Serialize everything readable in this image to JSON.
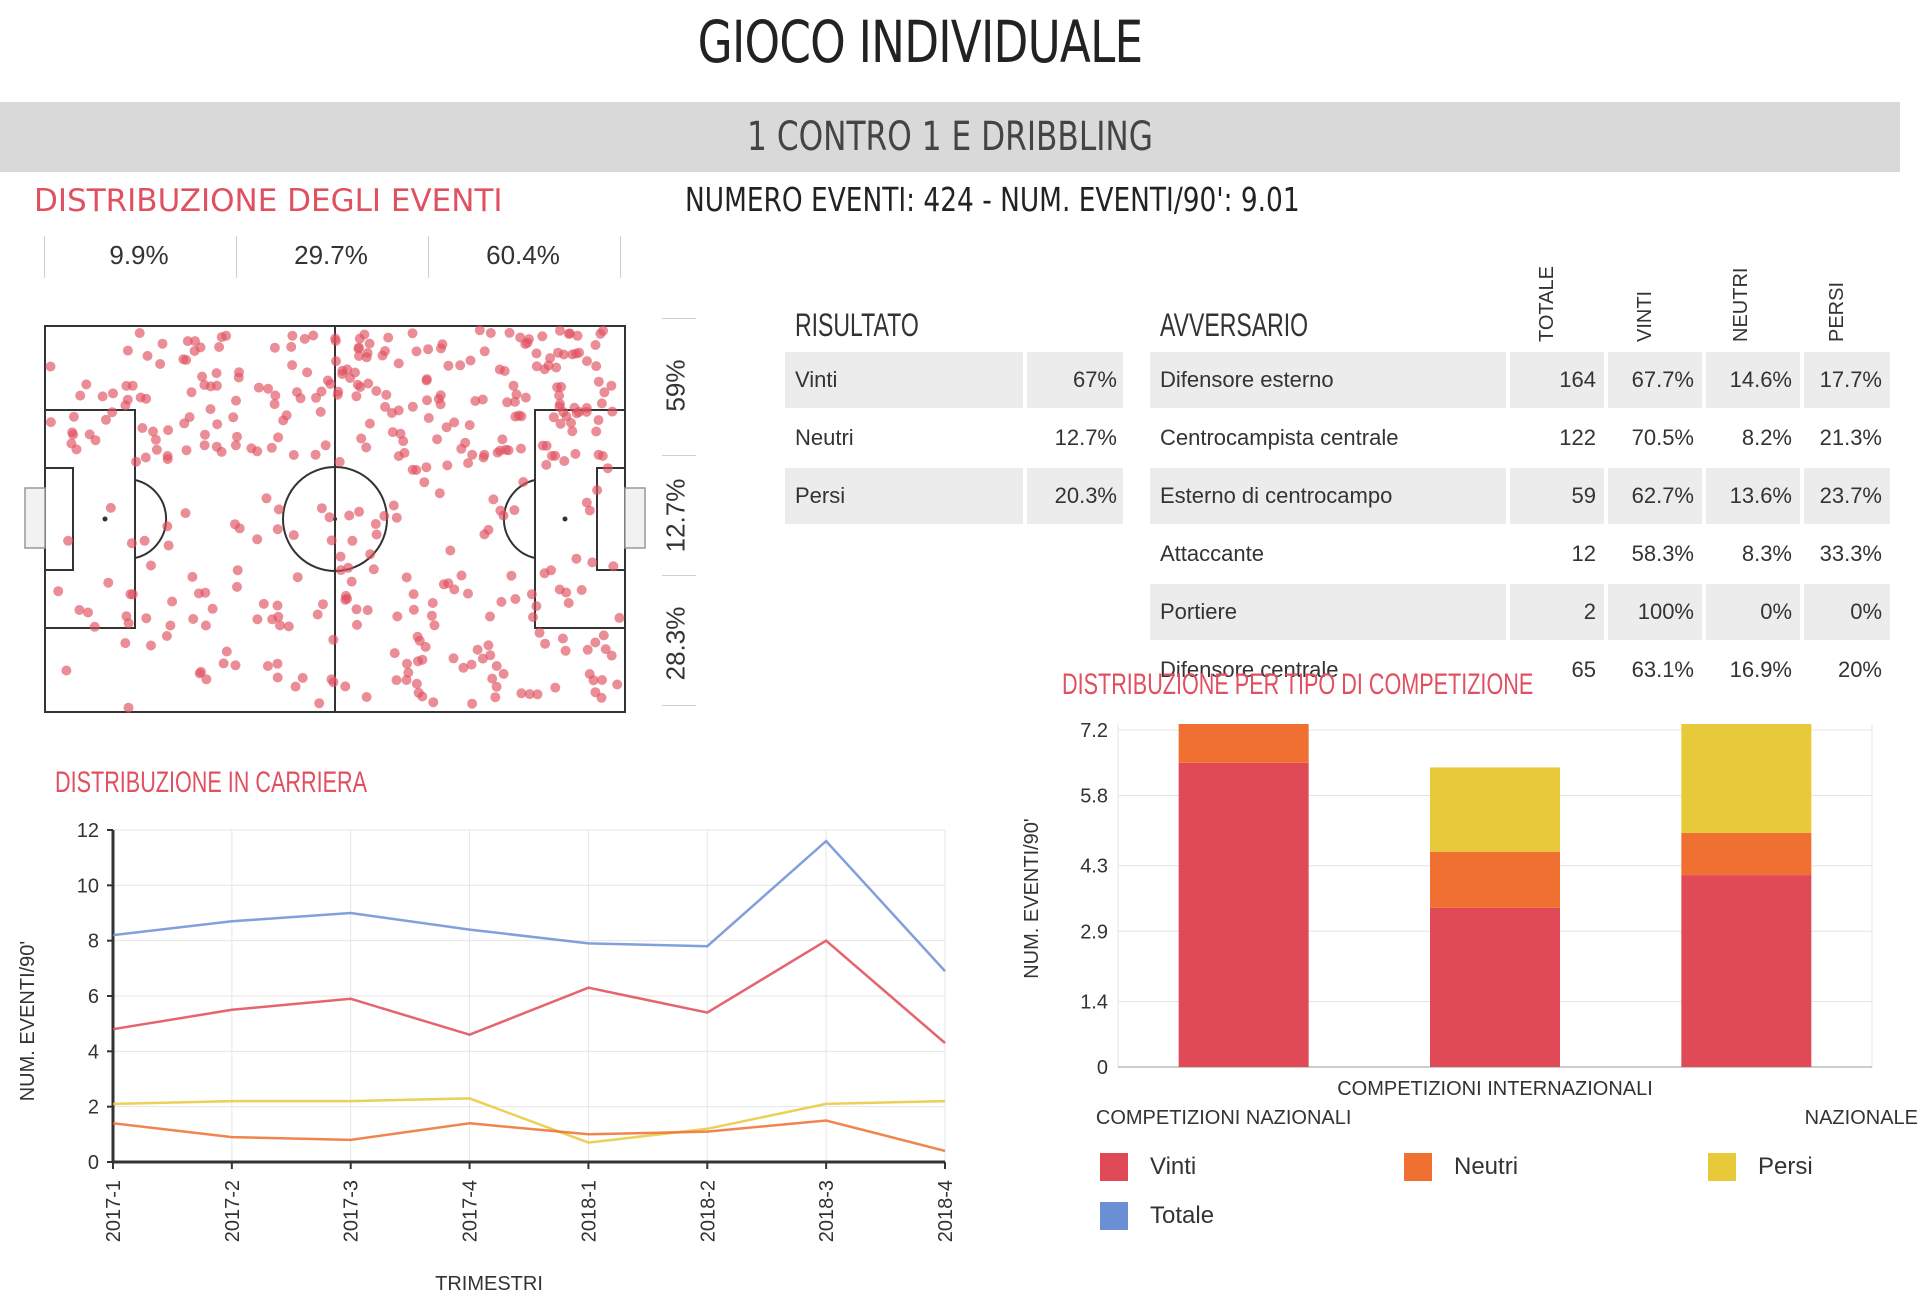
{
  "header": {
    "title": "GIOCO INDIVIDUALE",
    "section": "1 CONTRO 1 E DRIBBLING",
    "events_summary": "NUMERO EVENTI: 424  -  NUM. EVENTI/90': 9.01"
  },
  "distribution": {
    "title": "DISTRIBUZIONE DEGLI EVENTI",
    "zone_percentages": [
      "9.9%",
      "29.7%",
      "60.4%"
    ],
    "side_percentages": [
      "59%",
      "12.7%",
      "28.3%"
    ]
  },
  "result_table": {
    "header": "RISULTATO",
    "rows": [
      {
        "label": "Vinti",
        "value": "67%"
      },
      {
        "label": "Neutri",
        "value": "12.7%"
      },
      {
        "label": "Persi",
        "value": "20.3%"
      }
    ]
  },
  "opponent_table": {
    "header": "AVVERSARIO",
    "columns": [
      "TOTALE",
      "VINTI",
      "NEUTRI",
      "PERSI"
    ],
    "rows": [
      {
        "label": "Difensore esterno",
        "totale": "164",
        "vinti": "67.7%",
        "neutri": "14.6%",
        "persi": "17.7%"
      },
      {
        "label": "Centrocampista centrale",
        "totale": "122",
        "vinti": "70.5%",
        "neutri": "8.2%",
        "persi": "21.3%"
      },
      {
        "label": "Esterno di centrocampo",
        "totale": "59",
        "vinti": "62.7%",
        "neutri": "13.6%",
        "persi": "23.7%"
      },
      {
        "label": "Attaccante",
        "totale": "12",
        "vinti": "58.3%",
        "neutri": "8.3%",
        "persi": "33.3%"
      },
      {
        "label": "Portiere",
        "totale": "2",
        "vinti": "100%",
        "neutri": "0%",
        "persi": "0%"
      },
      {
        "label": "Difensore centrale",
        "totale": "65",
        "vinti": "63.1%",
        "neutri": "16.9%",
        "persi": "20%"
      }
    ]
  },
  "colors": {
    "accent": "#e05060",
    "vinti": "#e04a56",
    "neutri": "#ef7030",
    "persi": "#e8c93a",
    "totale": "#6b8fd6"
  },
  "legend": [
    {
      "key": "vinti",
      "label": "Vinti"
    },
    {
      "key": "neutri",
      "label": "Neutri"
    },
    {
      "key": "persi",
      "label": "Persi"
    },
    {
      "key": "totale",
      "label": "Totale"
    }
  ],
  "chart_data": [
    {
      "type": "line",
      "title": "DISTRIBUZIONE IN CARRIERA",
      "xlabel": "TRIMESTRI",
      "ylabel": "NUM. EVENTI/90'",
      "categories": [
        "2017-1",
        "2017-2",
        "2017-3",
        "2017-4",
        "2018-1",
        "2018-2",
        "2018-3",
        "2018-4"
      ],
      "ylim": [
        0,
        12
      ],
      "yticks": [
        0,
        2,
        4,
        6,
        8,
        10,
        12
      ],
      "series": [
        {
          "name": "Totale",
          "color_key": "totale",
          "values": [
            8.2,
            8.7,
            9.0,
            8.4,
            7.9,
            7.8,
            11.6,
            6.9
          ]
        },
        {
          "name": "Vinti",
          "color_key": "vinti",
          "values": [
            4.8,
            5.5,
            5.9,
            4.6,
            6.3,
            5.4,
            8.0,
            4.3
          ]
        },
        {
          "name": "Persi",
          "color_key": "persi",
          "values": [
            2.1,
            2.2,
            2.2,
            2.3,
            0.7,
            1.2,
            2.1,
            2.2
          ]
        },
        {
          "name": "Neutri",
          "color_key": "neutri",
          "values": [
            1.4,
            0.9,
            0.8,
            1.4,
            1.0,
            1.1,
            1.5,
            0.4
          ]
        }
      ]
    },
    {
      "type": "bar",
      "stacked": true,
      "title": "DISTRIBUZIONE PER TIPO DI COMPETIZIONE",
      "ylabel": "NUM. EVENTI/90'",
      "categories": [
        "COMPETIZIONI NAZIONALI",
        "COMPETIZIONI INTERNAZIONALI",
        "NAZIONALE"
      ],
      "ylim": [
        0,
        7.2
      ],
      "yticks": [
        "0",
        "1.4",
        "2.9",
        "4.3",
        "5.8",
        "7.2"
      ],
      "series": [
        {
          "name": "Vinti",
          "color_key": "vinti",
          "values": [
            6.5,
            3.4,
            4.1
          ]
        },
        {
          "name": "Neutri",
          "color_key": "neutri",
          "values": [
            1.0,
            1.2,
            0.9
          ]
        },
        {
          "name": "Persi",
          "color_key": "persi",
          "values": [
            0.0,
            1.8,
            2.8
          ]
        }
      ]
    }
  ]
}
